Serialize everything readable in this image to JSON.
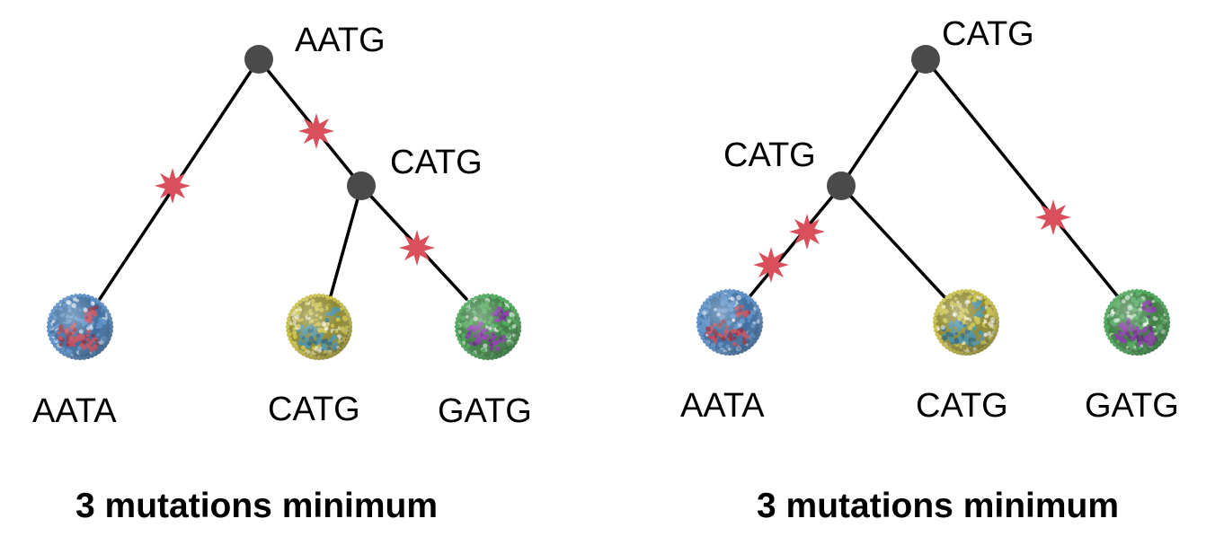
{
  "colors": {
    "node": "#4a4a4a",
    "edge": "#000000",
    "mutation_star": "#d94f5c",
    "virus_blue": "#5b8fc7",
    "virus_red": "#c0505f",
    "virus_yellow": "#c9c04a",
    "virus_teal": "#4f93a8",
    "virus_green": "#4fa85c",
    "virus_purple": "#8a3fa8"
  },
  "icons": {
    "node": "tree-node-dot",
    "mutation": "mutation-star-icon",
    "virus": "virus-particle-icon"
  },
  "trees": [
    {
      "root_label": "AATG",
      "internal_label": "CATG",
      "leaves": [
        {
          "label": "AATA",
          "virus": "blue-red"
        },
        {
          "label": "CATG",
          "virus": "yellow-teal"
        },
        {
          "label": "GATG",
          "virus": "green-purple"
        }
      ],
      "mutation_count": 3,
      "caption": "3 mutations minimum"
    },
    {
      "root_label": "CATG",
      "internal_label": "CATG",
      "leaves": [
        {
          "label": "AATA",
          "virus": "blue-red"
        },
        {
          "label": "CATG",
          "virus": "yellow-teal"
        },
        {
          "label": "GATG",
          "virus": "green-purple"
        }
      ],
      "mutation_count": 3,
      "caption": "3 mutations minimum"
    }
  ]
}
